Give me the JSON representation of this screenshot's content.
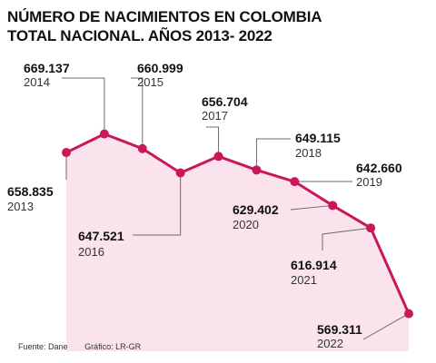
{
  "title_line1": "NÚMERO DE NACIMIENTOS EN COLOMBIA",
  "title_line2": "TOTAL NACIONAL. AÑOS 2013- 2022",
  "footer": {
    "source": "Fuente: Dane",
    "graphic": "Gráfico: LR-GR"
  },
  "colors": {
    "line": "#c8185a",
    "area": "#fbe3ee",
    "leader": "#6b6b6b",
    "value_text": "#111111",
    "year_text": "#333333"
  },
  "chart_data": {
    "type": "line",
    "title": "NÚMERO DE NACIMIENTOS EN COLOMBIA TOTAL NACIONAL. AÑOS 2013- 2022",
    "xlabel": "",
    "ylabel": "",
    "grid": false,
    "ylim": [
      555000,
      675000
    ],
    "series": [
      {
        "name": "",
        "points": [
          {
            "x": "2013",
            "y": 658835,
            "label": "658.835"
          },
          {
            "x": "2014",
            "y": 669137,
            "label": "669.137"
          },
          {
            "x": "2015",
            "y": 660999,
            "label": "660.999"
          },
          {
            "x": "2016",
            "y": 647521,
            "label": "647.521"
          },
          {
            "x": "2017",
            "y": 656704,
            "label": "656.704"
          },
          {
            "x": "2018",
            "y": 649115,
            "label": "649.115"
          },
          {
            "x": "2019",
            "y": 642660,
            "label": "642.660"
          },
          {
            "x": "2020",
            "y": 629402,
            "label": "629.402"
          },
          {
            "x": "2021",
            "y": 616914,
            "label": "616.914"
          },
          {
            "x": "2022",
            "y": 569311,
            "label": "569.311"
          }
        ]
      }
    ]
  }
}
